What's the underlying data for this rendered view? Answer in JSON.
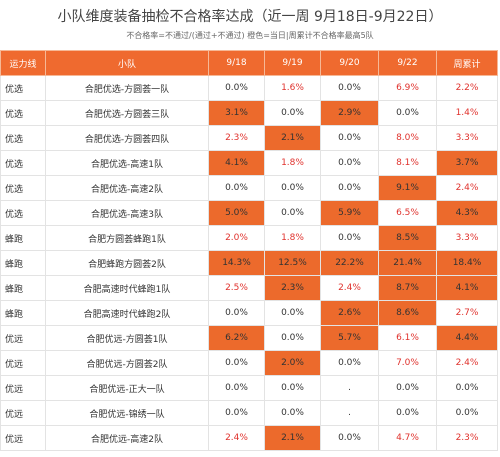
{
  "header": {
    "title": "小队维度装备抽检不合格率达成（近一周 9月18日-9月22日）",
    "subtitle": "不合格率=不通过/(通过+不通过)  橙色=当日|周累计不合格率最高5队"
  },
  "table": {
    "columns": [
      "运力线",
      "小队",
      "9/18",
      "9/19",
      "9/20",
      "9/22",
      "周累计"
    ],
    "highlight_color": "#ec6a2c",
    "positive_text_color": "#e0322d",
    "rows": [
      {
        "cells": [
          "优选",
          "合肥优选-方圆荟一队",
          "0.0%",
          "1.6%",
          "0.0%",
          "6.9%",
          "2.2%"
        ],
        "highlight": [
          false,
          false,
          false,
          false,
          false,
          false,
          false
        ]
      },
      {
        "cells": [
          "优选",
          "合肥优选-方圆荟三队",
          "3.1%",
          "0.0%",
          "2.9%",
          "0.0%",
          "1.4%"
        ],
        "highlight": [
          false,
          false,
          true,
          false,
          true,
          false,
          false
        ]
      },
      {
        "cells": [
          "优选",
          "合肥优选-方圆荟四队",
          "2.3%",
          "2.1%",
          "0.0%",
          "8.0%",
          "3.3%"
        ],
        "highlight": [
          false,
          false,
          false,
          true,
          false,
          false,
          false
        ]
      },
      {
        "cells": [
          "优选",
          "合肥优选-高速1队",
          "4.1%",
          "1.8%",
          "0.0%",
          "8.1%",
          "3.7%"
        ],
        "highlight": [
          false,
          false,
          true,
          false,
          false,
          false,
          true
        ]
      },
      {
        "cells": [
          "优选",
          "合肥优选-高速2队",
          "0.0%",
          "0.0%",
          "0.0%",
          "9.1%",
          "2.4%"
        ],
        "highlight": [
          false,
          false,
          false,
          false,
          false,
          true,
          false
        ]
      },
      {
        "cells": [
          "优选",
          "合肥优选-高速3队",
          "5.0%",
          "0.0%",
          "5.9%",
          "6.5%",
          "4.3%"
        ],
        "highlight": [
          false,
          false,
          true,
          false,
          true,
          false,
          true
        ]
      },
      {
        "cells": [
          "蜂跑",
          "合肥方圆荟蜂跑1队",
          "2.0%",
          "1.8%",
          "0.0%",
          "8.5%",
          "3.3%"
        ],
        "highlight": [
          false,
          false,
          false,
          false,
          false,
          true,
          false
        ]
      },
      {
        "cells": [
          "蜂跑",
          "合肥蜂跑方圆荟2队",
          "14.3%",
          "12.5%",
          "22.2%",
          "21.4%",
          "18.4%"
        ],
        "highlight": [
          false,
          false,
          true,
          true,
          true,
          true,
          true
        ]
      },
      {
        "cells": [
          "蜂跑",
          "合肥高速时代蜂跑1队",
          "2.5%",
          "2.3%",
          "2.4%",
          "8.7%",
          "4.1%"
        ],
        "highlight": [
          false,
          false,
          false,
          true,
          false,
          true,
          true
        ]
      },
      {
        "cells": [
          "蜂跑",
          "合肥高速时代蜂跑2队",
          "0.0%",
          "0.0%",
          "2.6%",
          "8.6%",
          "2.7%"
        ],
        "highlight": [
          false,
          false,
          false,
          false,
          true,
          true,
          false
        ]
      },
      {
        "cells": [
          "优远",
          "合肥优远-方圆荟1队",
          "6.2%",
          "0.0%",
          "5.7%",
          "6.1%",
          "4.4%"
        ],
        "highlight": [
          false,
          false,
          true,
          false,
          true,
          false,
          true
        ]
      },
      {
        "cells": [
          "优远",
          "合肥优远-方圆荟2队",
          "0.0%",
          "2.0%",
          "0.0%",
          "7.0%",
          "2.4%"
        ],
        "highlight": [
          false,
          false,
          false,
          true,
          false,
          false,
          false
        ]
      },
      {
        "cells": [
          "优远",
          "合肥优远-正大一队",
          "0.0%",
          "0.0%",
          ".",
          "0.0%",
          "0.0%"
        ],
        "highlight": [
          false,
          false,
          false,
          false,
          false,
          false,
          false
        ]
      },
      {
        "cells": [
          "优远",
          "合肥优远-锦绣一队",
          "0.0%",
          "0.0%",
          ".",
          "0.0%",
          "0.0%"
        ],
        "highlight": [
          false,
          false,
          false,
          false,
          false,
          false,
          false
        ]
      },
      {
        "cells": [
          "优远",
          "合肥优远-高速2队",
          "2.4%",
          "2.1%",
          "0.0%",
          "4.7%",
          "2.3%"
        ],
        "highlight": [
          false,
          false,
          false,
          true,
          false,
          false,
          false
        ]
      }
    ]
  }
}
